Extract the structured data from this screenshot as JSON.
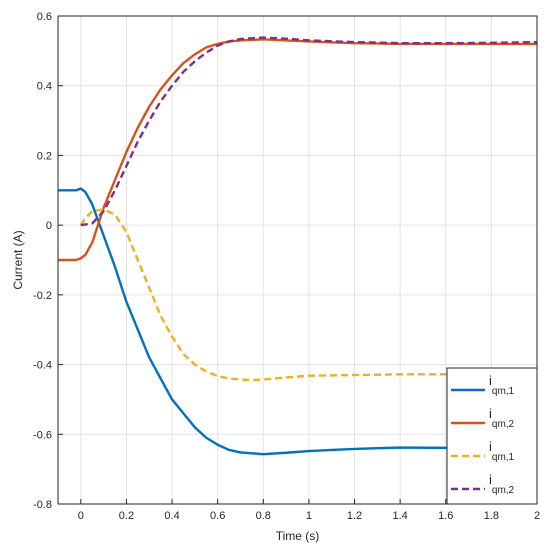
{
  "chart_data": {
    "type": "line",
    "title": "",
    "xlabel": "Time (s)",
    "ylabel": "Current (A)",
    "xlim": [
      -0.1,
      2.0
    ],
    "ylim": [
      -0.8,
      0.6
    ],
    "xticks": [
      0,
      0.2,
      0.4,
      0.6,
      0.8,
      1.0,
      1.2,
      1.4,
      1.6,
      1.8,
      2.0
    ],
    "xtick_labels": [
      "0",
      "0.2",
      "0.4",
      "0.6",
      "0.8",
      "1",
      "1.2",
      "1.4",
      "1.6",
      "1.8",
      "2"
    ],
    "yticks": [
      -0.8,
      -0.6,
      -0.4,
      -0.2,
      0,
      0.2,
      0.4,
      0.6
    ],
    "ytick_labels": [
      "-0.8",
      "-0.6",
      "-0.4",
      "-0.2",
      "0",
      "0.2",
      "0.4",
      "0.6"
    ],
    "grid": true,
    "legend_position": "bottom-right",
    "series": [
      {
        "name": "i_qm,1",
        "label_main": "i",
        "label_sub": "qm,1",
        "color": "#0072BD",
        "style": "solid",
        "points": [
          [
            -0.1,
            0.1
          ],
          [
            -0.02,
            0.1
          ],
          [
            0.0,
            0.105
          ],
          [
            0.02,
            0.095
          ],
          [
            0.05,
            0.06
          ],
          [
            0.1,
            -0.03
          ],
          [
            0.15,
            -0.12
          ],
          [
            0.2,
            -0.22
          ],
          [
            0.25,
            -0.3
          ],
          [
            0.3,
            -0.38
          ],
          [
            0.35,
            -0.44
          ],
          [
            0.4,
            -0.5
          ],
          [
            0.45,
            -0.54
          ],
          [
            0.5,
            -0.58
          ],
          [
            0.55,
            -0.61
          ],
          [
            0.6,
            -0.63
          ],
          [
            0.65,
            -0.645
          ],
          [
            0.7,
            -0.652
          ],
          [
            0.8,
            -0.657
          ],
          [
            0.9,
            -0.653
          ],
          [
            1.0,
            -0.648
          ],
          [
            1.1,
            -0.645
          ],
          [
            1.2,
            -0.642
          ],
          [
            1.3,
            -0.64
          ],
          [
            1.4,
            -0.638
          ],
          [
            1.6,
            -0.639
          ],
          [
            1.8,
            -0.64
          ],
          [
            2.0,
            -0.64
          ]
        ]
      },
      {
        "name": "i_qm,2",
        "label_main": "i",
        "label_sub": "qm,2",
        "color": "#D95319",
        "style": "solid",
        "points": [
          [
            -0.1,
            -0.1
          ],
          [
            -0.02,
            -0.1
          ],
          [
            0.0,
            -0.095
          ],
          [
            0.02,
            -0.085
          ],
          [
            0.05,
            -0.05
          ],
          [
            0.1,
            0.05
          ],
          [
            0.15,
            0.13
          ],
          [
            0.2,
            0.21
          ],
          [
            0.25,
            0.28
          ],
          [
            0.3,
            0.34
          ],
          [
            0.35,
            0.39
          ],
          [
            0.4,
            0.43
          ],
          [
            0.45,
            0.465
          ],
          [
            0.5,
            0.49
          ],
          [
            0.55,
            0.51
          ],
          [
            0.6,
            0.52
          ],
          [
            0.65,
            0.527
          ],
          [
            0.7,
            0.53
          ],
          [
            0.8,
            0.533
          ],
          [
            0.9,
            0.53
          ],
          [
            1.0,
            0.527
          ],
          [
            1.2,
            0.522
          ],
          [
            1.4,
            0.52
          ],
          [
            1.6,
            0.52
          ],
          [
            1.8,
            0.52
          ],
          [
            2.0,
            0.52
          ]
        ]
      },
      {
        "name": "i*_qm,1",
        "label_main": "i",
        "label_sub": "qm,1",
        "color": "#EDB120",
        "style": "dashed",
        "points": [
          [
            0.0,
            0.0
          ],
          [
            0.02,
            0.02
          ],
          [
            0.05,
            0.04
          ],
          [
            0.1,
            0.045
          ],
          [
            0.15,
            0.03
          ],
          [
            0.2,
            -0.02
          ],
          [
            0.25,
            -0.1
          ],
          [
            0.3,
            -0.18
          ],
          [
            0.35,
            -0.26
          ],
          [
            0.4,
            -0.32
          ],
          [
            0.45,
            -0.37
          ],
          [
            0.5,
            -0.4
          ],
          [
            0.55,
            -0.42
          ],
          [
            0.6,
            -0.433
          ],
          [
            0.65,
            -0.44
          ],
          [
            0.7,
            -0.443
          ],
          [
            0.75,
            -0.444
          ],
          [
            0.8,
            -0.443
          ],
          [
            0.9,
            -0.437
          ],
          [
            1.0,
            -0.432
          ],
          [
            1.2,
            -0.43
          ],
          [
            1.4,
            -0.428
          ],
          [
            1.6,
            -0.428
          ],
          [
            1.8,
            -0.428
          ],
          [
            2.0,
            -0.428
          ]
        ]
      },
      {
        "name": "i*_qm,2",
        "label_main": "i",
        "label_sub": "qm,2",
        "color": "#7E2F8E",
        "style": "dashed",
        "points": [
          [
            0.0,
            0.0
          ],
          [
            0.05,
            0.005
          ],
          [
            0.1,
            0.04
          ],
          [
            0.15,
            0.1
          ],
          [
            0.2,
            0.17
          ],
          [
            0.25,
            0.24
          ],
          [
            0.3,
            0.3
          ],
          [
            0.35,
            0.355
          ],
          [
            0.4,
            0.4
          ],
          [
            0.45,
            0.44
          ],
          [
            0.5,
            0.47
          ],
          [
            0.55,
            0.495
          ],
          [
            0.6,
            0.515
          ],
          [
            0.65,
            0.527
          ],
          [
            0.7,
            0.534
          ],
          [
            0.8,
            0.538
          ],
          [
            0.9,
            0.535
          ],
          [
            1.0,
            0.53
          ],
          [
            1.2,
            0.525
          ],
          [
            1.4,
            0.522
          ],
          [
            1.6,
            0.522
          ],
          [
            1.8,
            0.523
          ],
          [
            2.0,
            0.525
          ]
        ]
      }
    ]
  }
}
